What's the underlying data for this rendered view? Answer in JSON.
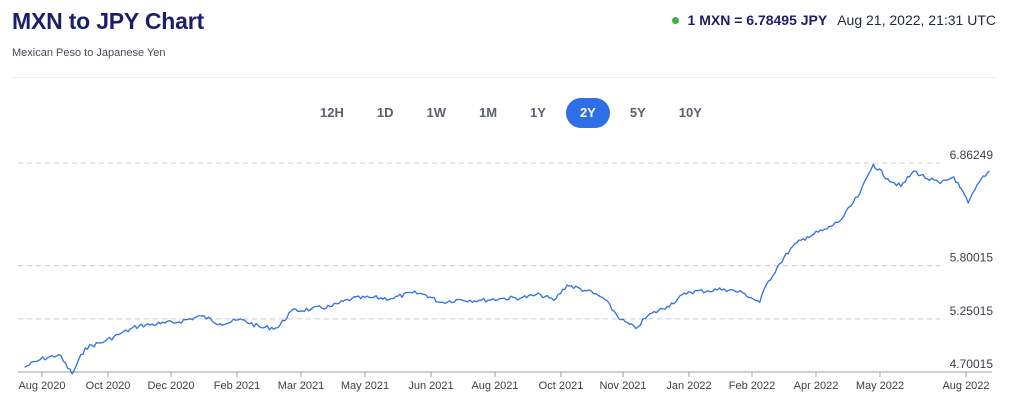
{
  "header": {
    "title": "MXN to JPY Chart",
    "subtitle": "Mexican Peso to Japanese Yen",
    "rate_text": "1 MXN = 6.78495 JPY",
    "timestamp": "Aug 21, 2022, 21:31 UTC",
    "live_dot_color": "#3fb23f"
  },
  "range_tabs": {
    "items": [
      "12H",
      "1D",
      "1W",
      "1M",
      "1Y",
      "2Y",
      "5Y",
      "10Y"
    ],
    "active": "2Y"
  },
  "chart_data": {
    "type": "line",
    "title": "",
    "xlabel": "",
    "ylabel": "",
    "line_color": "#2e6fe6",
    "grid": "dashed horizontal",
    "y_ticks": [
      "6.86249",
      "5.80015",
      "5.25015",
      "4.70015"
    ],
    "x_ticks": [
      "Aug 2020",
      "Oct 2020",
      "Dec 2020",
      "Feb 2021",
      "Mar 2021",
      "May 2021",
      "Jun 2021",
      "Aug 2021",
      "Oct 2021",
      "Nov 2021",
      "Jan 2022",
      "Feb 2022",
      "Apr 2022",
      "May 2022",
      "Aug 2022"
    ],
    "ylim": [
      4.70015,
      6.86249
    ],
    "x": [
      "2020-08-20",
      "2020-09-01",
      "2020-09-15",
      "2020-09-25",
      "2020-10-05",
      "2020-10-20",
      "2020-11-01",
      "2020-11-15",
      "2020-12-01",
      "2020-12-15",
      "2021-01-01",
      "2021-01-15",
      "2021-02-01",
      "2021-02-15",
      "2021-02-28",
      "2021-03-10",
      "2021-03-25",
      "2021-04-10",
      "2021-04-25",
      "2021-05-10",
      "2021-05-25",
      "2021-06-10",
      "2021-06-20",
      "2021-07-01",
      "2021-07-15",
      "2021-08-01",
      "2021-08-15",
      "2021-09-01",
      "2021-09-15",
      "2021-09-25",
      "2021-10-05",
      "2021-10-20",
      "2021-11-01",
      "2021-11-15",
      "2021-11-26",
      "2021-12-05",
      "2021-12-20",
      "2022-01-05",
      "2022-01-20",
      "2022-02-01",
      "2022-02-15",
      "2022-02-28",
      "2022-03-05",
      "2022-03-15",
      "2022-03-25",
      "2022-04-05",
      "2022-04-20",
      "2022-05-01",
      "2022-05-15",
      "2022-05-25",
      "2022-06-05",
      "2022-06-15",
      "2022-06-25",
      "2022-07-05",
      "2022-07-15",
      "2022-07-25",
      "2022-08-05",
      "2022-08-15",
      "2022-08-21"
    ],
    "y": [
      4.75,
      4.83,
      4.88,
      4.68,
      4.95,
      5.02,
      5.1,
      5.18,
      5.2,
      5.22,
      5.28,
      5.2,
      5.24,
      5.16,
      5.16,
      5.33,
      5.35,
      5.38,
      5.46,
      5.47,
      5.46,
      5.52,
      5.5,
      5.42,
      5.45,
      5.44,
      5.46,
      5.47,
      5.5,
      5.44,
      5.6,
      5.54,
      5.47,
      5.24,
      5.15,
      5.28,
      5.38,
      5.53,
      5.54,
      5.56,
      5.52,
      5.42,
      5.6,
      5.82,
      6.0,
      6.1,
      6.18,
      6.28,
      6.55,
      6.85,
      6.7,
      6.62,
      6.78,
      6.7,
      6.65,
      6.72,
      6.45,
      6.7,
      6.78
    ]
  }
}
